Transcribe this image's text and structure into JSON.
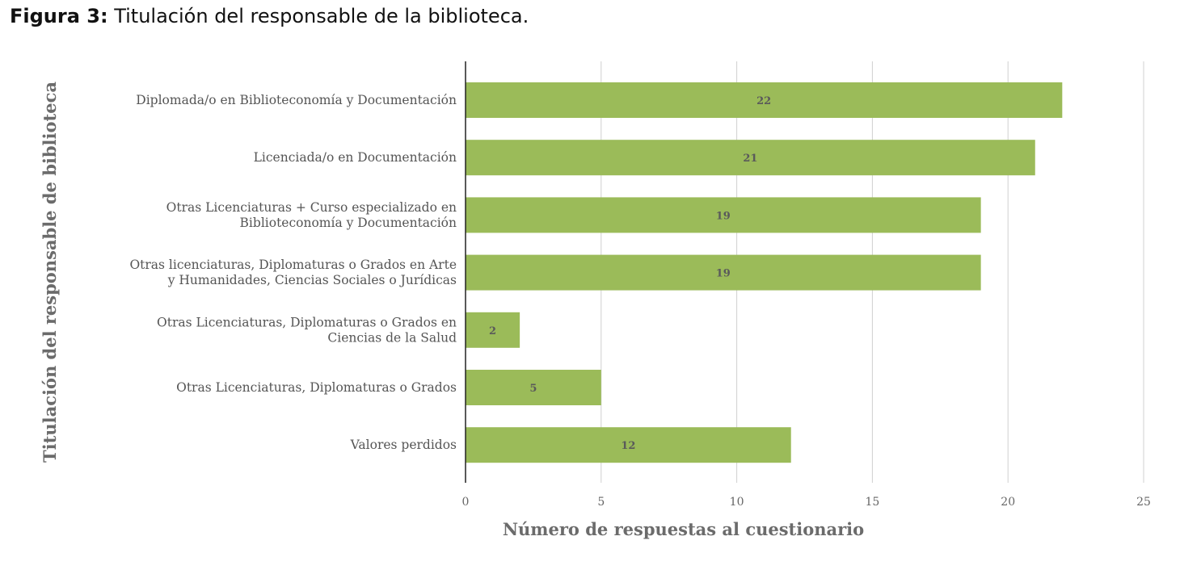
{
  "figure": {
    "label": "Figura 3:",
    "caption": "Titulación del responsable de la biblioteca."
  },
  "chart_data": {
    "type": "bar",
    "orientation": "horizontal",
    "categories": [
      [
        "Diplomada/o en Biblioteconomía y Documentación"
      ],
      [
        "Licenciada/o en Documentación"
      ],
      [
        "Otras Licenciaturas + Curso especializado en",
        "Biblioteconomía y Documentación"
      ],
      [
        "Otras licenciaturas, Diplomaturas o Grados en Arte",
        "y Humanidades, Ciencias Sociales o Jurídicas"
      ],
      [
        "Otras Licenciaturas, Diplomaturas o Grados en",
        "Ciencias de la Salud"
      ],
      [
        "Otras Licenciaturas, Diplomaturas o Grados"
      ],
      [
        "Valores perdidos"
      ]
    ],
    "values": [
      22,
      21,
      19,
      19,
      2,
      5,
      12
    ],
    "xlabel": "Número de respuestas al cuestionario",
    "ylabel": "Titulación del responsable de biblioteca",
    "xlim": [
      0,
      25
    ],
    "xticks": [
      0,
      5,
      10,
      15,
      20,
      25
    ],
    "grid": "vertical",
    "data_labels": true,
    "bar_color": "#9bbb59",
    "grid_color": "#d0d0d0",
    "axis_color": "#222222"
  }
}
